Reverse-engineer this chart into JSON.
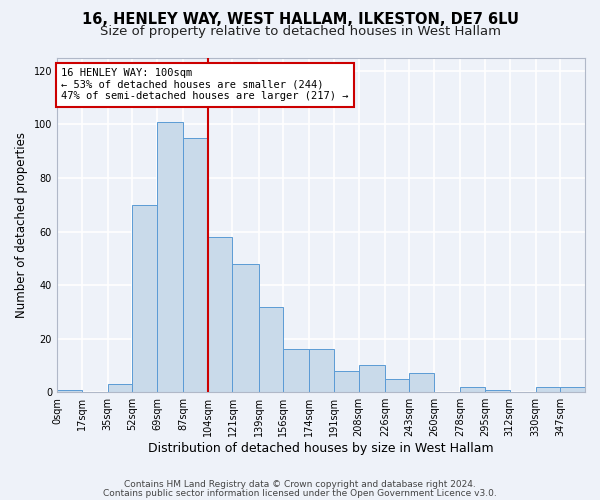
{
  "title1": "16, HENLEY WAY, WEST HALLAM, ILKESTON, DE7 6LU",
  "title2": "Size of property relative to detached houses in West Hallam",
  "xlabel": "Distribution of detached houses by size in West Hallam",
  "ylabel": "Number of detached properties",
  "bar_values": [
    1,
    0,
    3,
    70,
    101,
    95,
    58,
    48,
    32,
    16,
    16,
    8,
    10,
    5,
    7,
    0,
    2,
    1,
    0,
    2,
    2
  ],
  "bin_edges": [
    0,
    17,
    35,
    52,
    69,
    87,
    104,
    121,
    139,
    156,
    174,
    191,
    208,
    226,
    243,
    260,
    278,
    295,
    312,
    330,
    347,
    364
  ],
  "tick_labels": [
    "0sqm",
    "17sqm",
    "35sqm",
    "52sqm",
    "69sqm",
    "87sqm",
    "104sqm",
    "121sqm",
    "139sqm",
    "156sqm",
    "174sqm",
    "191sqm",
    "208sqm",
    "226sqm",
    "243sqm",
    "260sqm",
    "278sqm",
    "295sqm",
    "312sqm",
    "330sqm",
    "347sqm"
  ],
  "red_line_x": 104,
  "bar_facecolor": "#c9daea",
  "bar_edgecolor": "#5b9bd5",
  "vline_color": "#cc0000",
  "annotation_text": "16 HENLEY WAY: 100sqm\n← 53% of detached houses are smaller (244)\n47% of semi-detached houses are larger (217) →",
  "annotation_box_edgecolor": "#cc0000",
  "background_color": "#eef2f9",
  "grid_color": "#ffffff",
  "ylim": [
    0,
    125
  ],
  "yticks": [
    0,
    20,
    40,
    60,
    80,
    100,
    120
  ],
  "footer1": "Contains HM Land Registry data © Crown copyright and database right 2024.",
  "footer2": "Contains public sector information licensed under the Open Government Licence v3.0.",
  "title1_fontsize": 10.5,
  "title2_fontsize": 9.5,
  "xlabel_fontsize": 9,
  "ylabel_fontsize": 8.5,
  "tick_fontsize": 7,
  "footer_fontsize": 6.5
}
